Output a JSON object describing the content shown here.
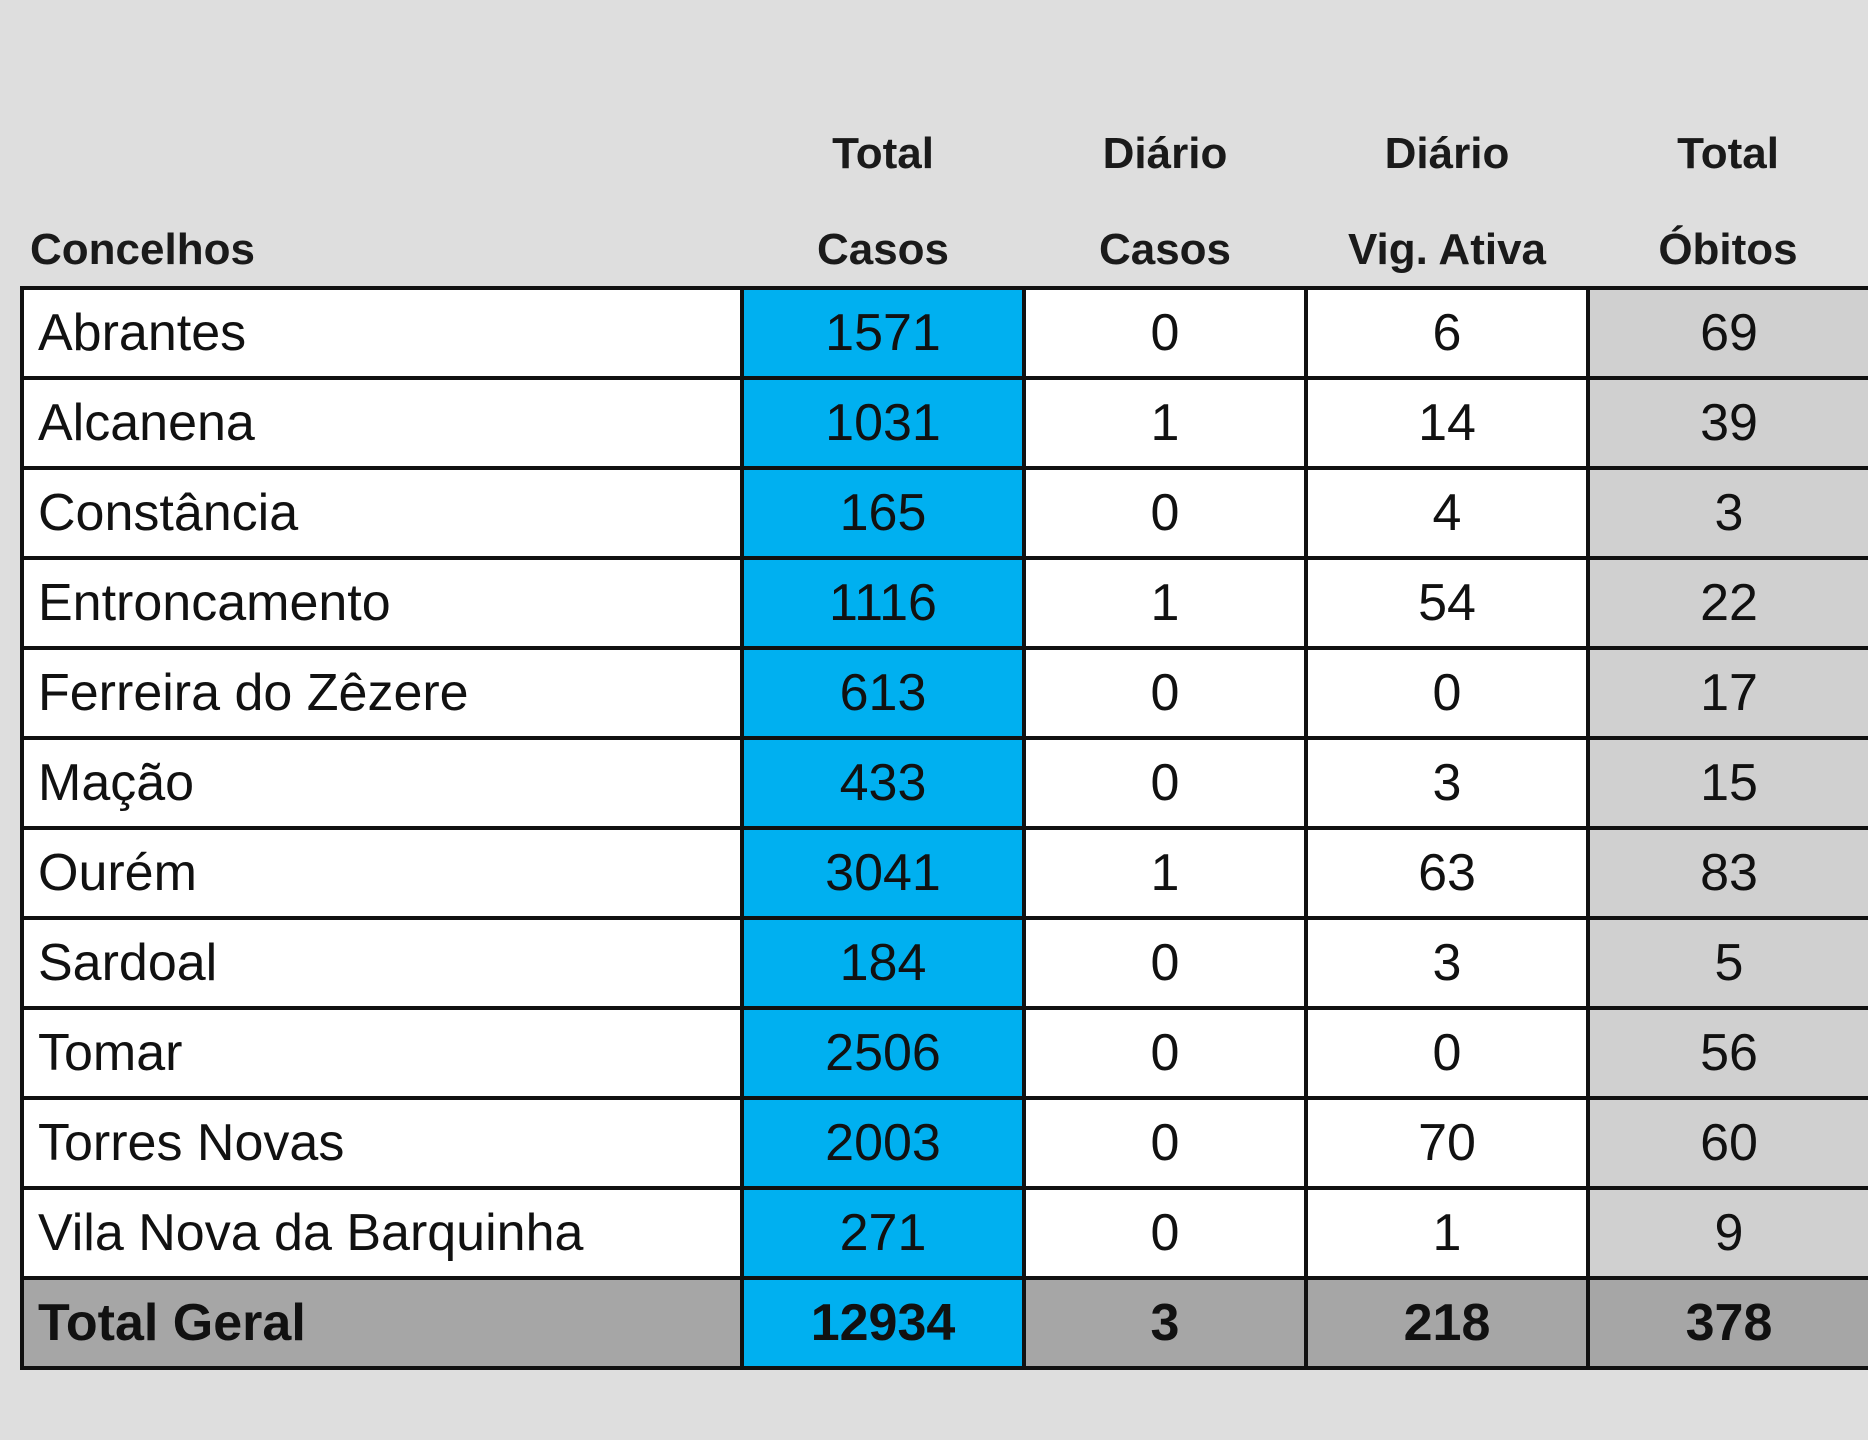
{
  "header": {
    "concelhos": "Concelhos",
    "total_casos": [
      "Total",
      "Casos"
    ],
    "diario_casos": [
      "Diário",
      "Casos"
    ],
    "diario_vig": [
      "Diário",
      "Vig. Ativa"
    ],
    "total_obitos": [
      "Total",
      "Óbitos"
    ]
  },
  "rows": [
    {
      "name": "Abrantes",
      "casos": "1571",
      "diario": "0",
      "vig": "6",
      "obitos": "69"
    },
    {
      "name": "Alcanena",
      "casos": "1031",
      "diario": "1",
      "vig": "14",
      "obitos": "39"
    },
    {
      "name": "Constância",
      "casos": "165",
      "diario": "0",
      "vig": "4",
      "obitos": "3"
    },
    {
      "name": "Entroncamento",
      "casos": "1116",
      "diario": "1",
      "vig": "54",
      "obitos": "22"
    },
    {
      "name": "Ferreira do Zêzere",
      "casos": "613",
      "diario": "0",
      "vig": "0",
      "obitos": "17"
    },
    {
      "name": "Mação",
      "casos": "433",
      "diario": "0",
      "vig": "3",
      "obitos": "15"
    },
    {
      "name": "Ourém",
      "casos": "3041",
      "diario": "1",
      "vig": "63",
      "obitos": "83"
    },
    {
      "name": "Sardoal",
      "casos": "184",
      "diario": "0",
      "vig": "3",
      "obitos": "5"
    },
    {
      "name": "Tomar",
      "casos": "2506",
      "diario": "0",
      "vig": "0",
      "obitos": "56"
    },
    {
      "name": "Torres Novas",
      "casos": "2003",
      "diario": "0",
      "vig": "70",
      "obitos": "60"
    },
    {
      "name": "Vila Nova da Barquinha",
      "casos": "271",
      "diario": "0",
      "vig": "1",
      "obitos": "9"
    }
  ],
  "total": {
    "name": "Total Geral",
    "casos": "12934",
    "diario": "3",
    "vig": "218",
    "obitos": "378"
  },
  "colors": {
    "casos_fill": "#00b0f0",
    "obitos_fill": "#d0d0d0",
    "total_fill": "#a6a6a6",
    "background": "#dedede"
  }
}
